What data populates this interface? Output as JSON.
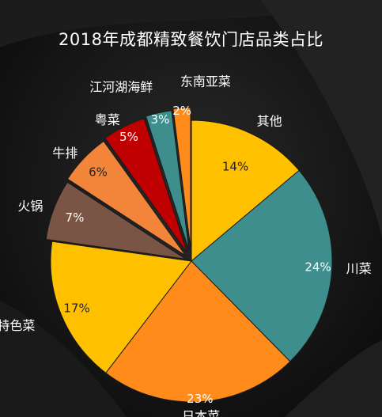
{
  "title": "2018年成都精致餐饮门店品类占比",
  "colors": {
    "background": "#0d0d0d",
    "yellow": "#FFC000",
    "teal": "#3E8E8E",
    "orange": "#FF8C1A",
    "brown": "#7A5545",
    "light_orange": "#F2853A",
    "red": "#C00000"
  },
  "chart_data": {
    "type": "pie",
    "title": "2018年成都精致餐饮门店品类占比",
    "start_angle_deg": 0,
    "direction": "clockwise",
    "legend": "none",
    "slices": [
      {
        "label": "其他",
        "value": 14,
        "display": "14%",
        "color": "#FFC000"
      },
      {
        "label": "川菜",
        "value": 24,
        "display": "24%",
        "color": "#3E8E8E"
      },
      {
        "label": "日本菜",
        "value": 23,
        "display": "23%",
        "color": "#FF8C1A"
      },
      {
        "label": "特色菜",
        "value": 17,
        "display": "17%",
        "color": "#FFC000"
      },
      {
        "label": "火锅",
        "value": 7,
        "display": "7%",
        "color": "#7A5545"
      },
      {
        "label": "牛排",
        "value": 6,
        "display": "6%",
        "color": "#F2853A"
      },
      {
        "label": "粤菜",
        "value": 5,
        "display": "5%",
        "color": "#C00000"
      },
      {
        "label": "江河湖海鲜",
        "value": 3,
        "display": "3%",
        "color": "#3E8E8E"
      },
      {
        "label": "东南亚菜",
        "value": 2,
        "display": "2%",
        "color": "#FF8C1A"
      }
    ]
  }
}
